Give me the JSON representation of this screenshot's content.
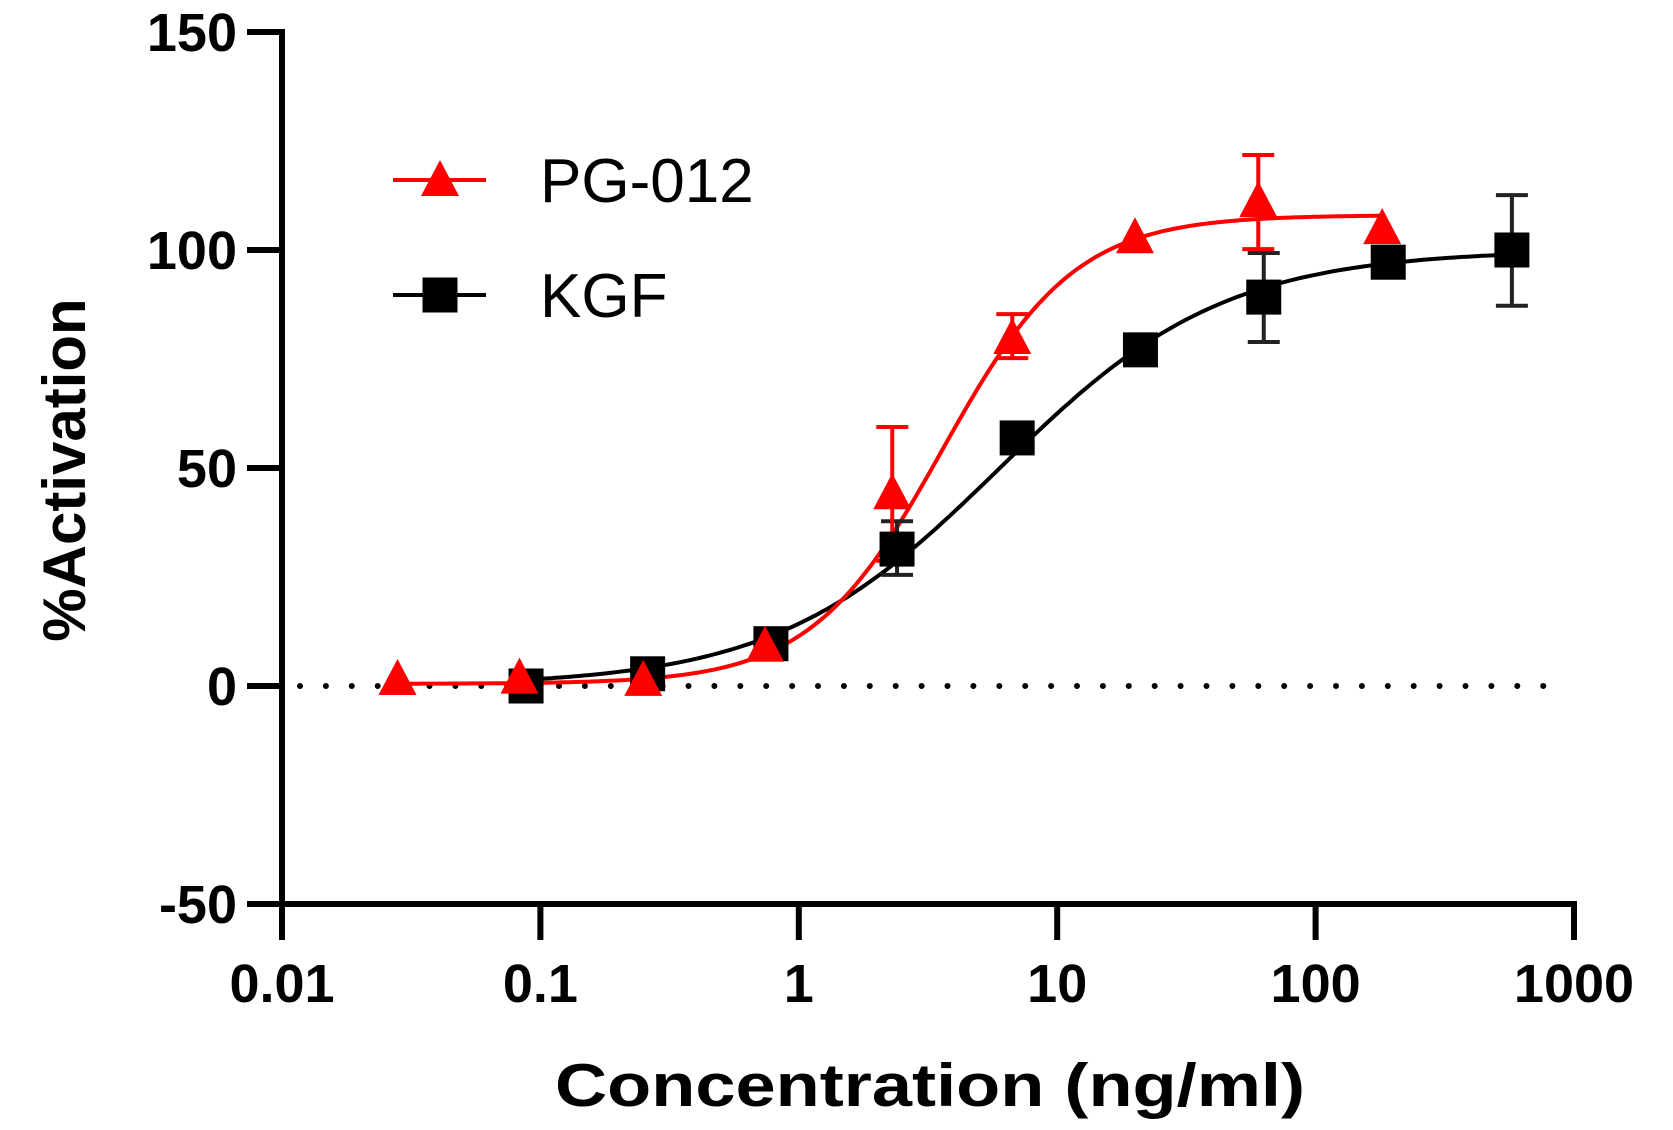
{
  "chart_data": {
    "type": "scatter",
    "title": "",
    "xlabel": "Concentration (ng/ml)",
    "ylabel": "%Activation",
    "xscale": "log",
    "xlim": [
      0.01,
      1000
    ],
    "ylim": [
      -50,
      150
    ],
    "x_ticks": [
      0.01,
      0.1,
      1,
      10,
      100,
      1000
    ],
    "x_tick_labels": [
      "0.01",
      "0.1",
      "1",
      "10",
      "100",
      "1000"
    ],
    "y_ticks": [
      -50,
      0,
      50,
      100,
      150
    ],
    "y_tick_labels": [
      "-50",
      "0",
      "50",
      "100",
      "150"
    ],
    "grid": false,
    "reference_line": {
      "y": 0,
      "style": "dotted",
      "color": "#000000"
    },
    "legend": {
      "placement": "top-left",
      "entries": [
        "PG-012",
        "KGF"
      ]
    },
    "series": [
      {
        "name": "PG-012",
        "color": "#ff0000",
        "marker": "triangle",
        "x": [
          0.028,
          0.083,
          0.25,
          0.74,
          2.3,
          6.7,
          20,
          60,
          181
        ],
        "y": [
          0.7,
          1.0,
          0.5,
          8.3,
          43.3,
          78.9,
          102,
          110.3,
          104.1
        ],
        "y_err_upper": [
          null,
          null,
          null,
          null,
          59.4,
          85.3,
          null,
          121.8,
          null
        ],
        "y_err_lower": [
          null,
          null,
          null,
          null,
          28.7,
          75.2,
          null,
          100.2,
          null
        ],
        "fit": {
          "model": "4PL",
          "bottom": 0.5,
          "top": 108,
          "ec50": 3.6,
          "hill": 1.7
        }
      },
      {
        "name": "KGF",
        "color": "#000000",
        "marker": "square",
        "x": [
          0.088,
          0.26,
          0.78,
          2.4,
          7.0,
          21,
          63,
          191,
          575
        ],
        "y": [
          0.0,
          2.8,
          9.7,
          31.4,
          56.9,
          77.1,
          89.2,
          97.2,
          100.0
        ],
        "y_err_upper": [
          null,
          null,
          null,
          37.8,
          null,
          null,
          99.3,
          null,
          112.6
        ],
        "y_err_lower": [
          null,
          null,
          null,
          25.5,
          null,
          null,
          78.9,
          null,
          87.2
        ],
        "fit": {
          "model": "4PL",
          "bottom": 0,
          "top": 100,
          "ec50": 6.0,
          "hill": 1.0
        }
      }
    ]
  }
}
